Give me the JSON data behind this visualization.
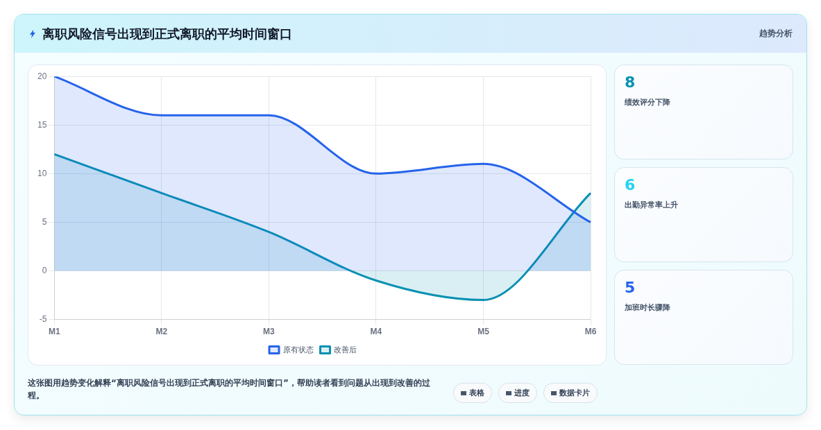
{
  "chart_data": [
    {
      "type": "area",
      "title": "离职风险信号出现到正式离职的平均时间窗口",
      "categories": [
        "M1",
        "M2",
        "M3",
        "M4",
        "M5",
        "M6"
      ],
      "series": [
        {
          "name": "原有状态",
          "color": "#2563eb",
          "values": [
            20,
            16,
            16,
            10,
            11,
            5
          ]
        },
        {
          "name": "改善后",
          "color": "#0891b2",
          "values": [
            12,
            8,
            4,
            -1,
            -3,
            8
          ]
        }
      ],
      "ylim": [
        -5,
        20
      ],
      "yticks": [
        -5,
        0,
        5,
        10,
        15,
        20
      ],
      "grid": true,
      "legend": "bottom",
      "marker": "none",
      "annotations": [
        "这张图用趋势变化解释“离职风险信号出现到正式离职的平均时间窗口”，帮助读者看到问题从出现到改善的过程。"
      ]
    },
    {
      "type": "other",
      "annotations": [
        "趋势分析",
        "8",
        "绩效评分下降",
        "6",
        "出勤异常率上升",
        "5",
        "加班时长骤降",
        "表格",
        "进度",
        "数据卡片"
      ]
    }
  ]
}
